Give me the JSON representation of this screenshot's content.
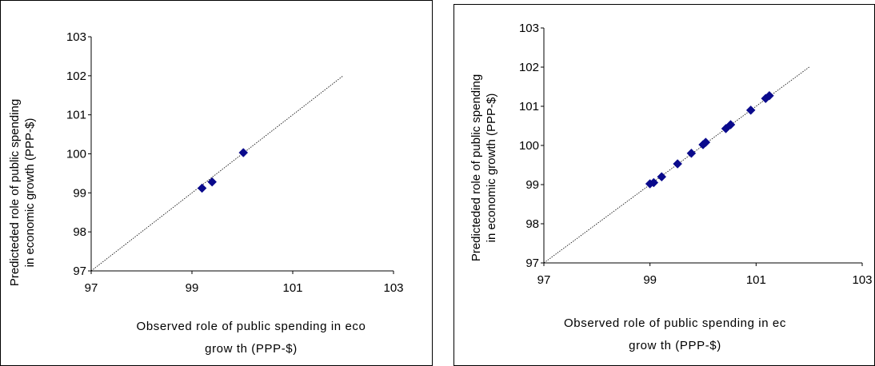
{
  "chart_data": [
    {
      "type": "scatter",
      "title": "",
      "xlabel_lines": [
        "Observed role of public spending in eco",
        "grow th  (PPP-$)"
      ],
      "ylabel_lines": [
        "Predicteded role of public spending",
        "in economic growth (PPP-$)"
      ],
      "xlim": [
        97,
        103
      ],
      "ylim": [
        97,
        103
      ],
      "x_ticks": [
        "97",
        "99",
        "101",
        "103"
      ],
      "y_ticks": [
        "97",
        "98",
        "99",
        "100",
        "101",
        "102",
        "103"
      ],
      "grid": false,
      "legend": "none",
      "marker": "diamond",
      "marker_color": "#0a0a8c",
      "reference_line": {
        "style": "dotted",
        "from": [
          97,
          97
        ],
        "to": [
          102,
          102
        ]
      },
      "points": [
        {
          "x": 99.2,
          "y": 99.12
        },
        {
          "x": 99.4,
          "y": 99.28
        },
        {
          "x": 100.02,
          "y": 100.03
        }
      ]
    },
    {
      "type": "scatter",
      "title": "",
      "xlabel_lines": [
        "Observed role of public spending in ec",
        "grow th (PPP-$)"
      ],
      "ylabel_lines": [
        "Predicteded role of public spending",
        "in economic growth (PPP-$)"
      ],
      "xlim": [
        97,
        103
      ],
      "ylim": [
        97,
        103
      ],
      "x_ticks": [
        "97",
        "99",
        "101",
        "103"
      ],
      "y_ticks": [
        "97",
        "98",
        "99",
        "100",
        "101",
        "102",
        "103"
      ],
      "grid": false,
      "legend": "none",
      "marker": "diamond",
      "marker_color": "#0a0a8c",
      "reference_line": {
        "style": "dotted",
        "from": [
          97,
          97
        ],
        "to": [
          102,
          102
        ]
      },
      "points": [
        {
          "x": 99.0,
          "y": 99.02
        },
        {
          "x": 99.07,
          "y": 99.05
        },
        {
          "x": 99.22,
          "y": 99.2
        },
        {
          "x": 99.52,
          "y": 99.53
        },
        {
          "x": 99.78,
          "y": 99.8
        },
        {
          "x": 100.0,
          "y": 100.02
        },
        {
          "x": 100.05,
          "y": 100.08
        },
        {
          "x": 100.43,
          "y": 100.43
        },
        {
          "x": 100.52,
          "y": 100.53
        },
        {
          "x": 100.9,
          "y": 100.9
        },
        {
          "x": 101.18,
          "y": 101.2
        },
        {
          "x": 101.25,
          "y": 101.27
        }
      ]
    }
  ]
}
